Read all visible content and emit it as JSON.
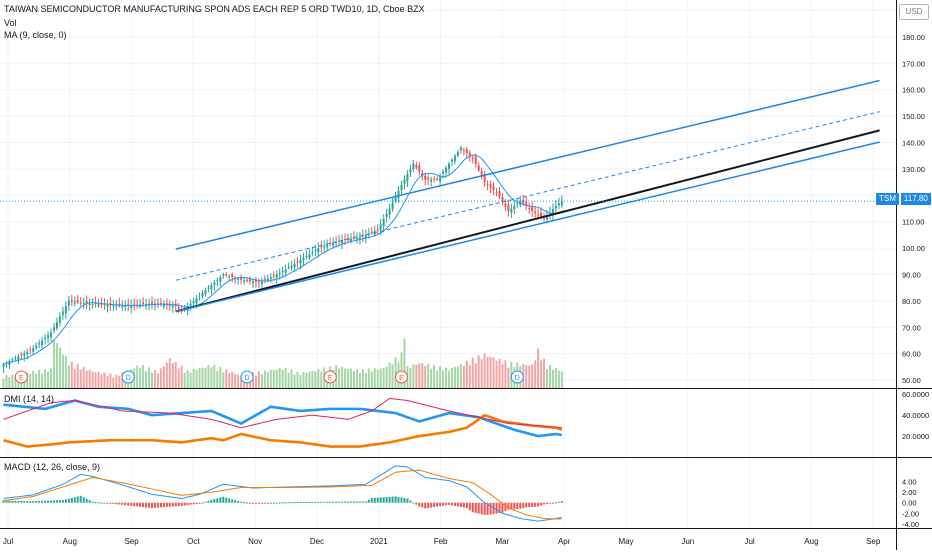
{
  "title": "TAIWAN SEMICONDUCTOR MANUFACTURING SPON ADS EACH REP 5 ORD TWD10, 1D, Cboe BZX",
  "vol_label": "Vol",
  "ma_label": "MA (9, close, 0)",
  "currency": "USD",
  "symbol_tag": "TSM",
  "last_price": "117.80",
  "colors": {
    "up": "#26a69a",
    "down": "#ef5350",
    "blue": "#2196f3",
    "orange": "#f57c00",
    "pink": "#e91e63",
    "black": "#131722"
  },
  "chart_data": [
    {
      "type": "candlestick",
      "title": "TAIWAN SEMICONDUCTOR MANUFACTURING SPON ADS EACH REP 5 ORD TWD10, 1D, Cboe BZX",
      "x_labels": [
        "Jul",
        "Aug",
        "Sep",
        "Oct",
        "Nov",
        "Dec",
        "2021",
        "Feb",
        "Mar",
        "Apr",
        "May",
        "Jun",
        "Jul",
        "Aug",
        "Sep"
      ],
      "y_ticks": [
        "190.00",
        "180.00",
        "170.00",
        "160.00",
        "150.00",
        "140.00",
        "130.00",
        "120.00",
        "110.00",
        "100.00",
        "90.00",
        "80.00",
        "70.00",
        "60.00",
        "50.00"
      ],
      "ylim": [
        47,
        194
      ],
      "close_anchors": [
        [
          0,
          56
        ],
        [
          10,
          62
        ],
        [
          16,
          68
        ],
        [
          22,
          80
        ],
        [
          28,
          79
        ],
        [
          40,
          78
        ],
        [
          50,
          79
        ],
        [
          58,
          78
        ],
        [
          60,
          76
        ],
        [
          64,
          80
        ],
        [
          68,
          84
        ],
        [
          74,
          90
        ],
        [
          80,
          88
        ],
        [
          86,
          87
        ],
        [
          92,
          90
        ],
        [
          98,
          94
        ],
        [
          106,
          100
        ],
        [
          114,
          103
        ],
        [
          120,
          104
        ],
        [
          126,
          107
        ],
        [
          130,
          115
        ],
        [
          134,
          124
        ],
        [
          138,
          132
        ],
        [
          142,
          126
        ],
        [
          146,
          126
        ],
        [
          150,
          132
        ],
        [
          154,
          138
        ],
        [
          158,
          134
        ],
        [
          162,
          125
        ],
        [
          166,
          121
        ],
        [
          170,
          114
        ],
        [
          174,
          118
        ],
        [
          178,
          114
        ],
        [
          182,
          111
        ],
        [
          186,
          116
        ],
        [
          188,
          117.8
        ]
      ],
      "ma_period": 9,
      "volume_ylim": [
        0,
        180
      ],
      "volume_profile": [
        [
          0,
          28
        ],
        [
          16,
          45
        ],
        [
          17,
          120
        ],
        [
          22,
          62
        ],
        [
          30,
          40
        ],
        [
          38,
          30
        ],
        [
          46,
          55
        ],
        [
          52,
          38
        ],
        [
          56,
          70
        ],
        [
          62,
          40
        ],
        [
          70,
          55
        ],
        [
          80,
          30
        ],
        [
          94,
          48
        ],
        [
          100,
          35
        ],
        [
          112,
          52
        ],
        [
          120,
          42
        ],
        [
          128,
          48
        ],
        [
          134,
          80
        ],
        [
          135,
          140
        ],
        [
          136,
          50
        ],
        [
          140,
          60
        ],
        [
          150,
          45
        ],
        [
          162,
          80
        ],
        [
          170,
          60
        ],
        [
          178,
          55
        ],
        [
          180,
          90
        ],
        [
          183,
          55
        ],
        [
          188,
          40
        ]
      ],
      "event_markers": [
        {
          "bar": 6,
          "label": "E"
        },
        {
          "bar": 42,
          "label": "D"
        },
        {
          "bar": 82,
          "label": "D"
        },
        {
          "bar": 110,
          "label": "E"
        },
        {
          "bar": 134,
          "label": "E"
        },
        {
          "bar": 173,
          "label": "D"
        }
      ],
      "trend_lines": [
        {
          "name": "channel-upper",
          "style": "solid",
          "from": [
            58,
            99.6
          ],
          "to": [
            295,
            163.5
          ]
        },
        {
          "name": "channel-mid",
          "style": "dashed",
          "from": [
            58,
            87.8
          ],
          "to": [
            295,
            151.7
          ]
        },
        {
          "name": "support-black",
          "style": "solid-black",
          "from": [
            58,
            76
          ],
          "to": [
            295,
            144.6
          ]
        },
        {
          "name": "channel-lower",
          "style": "solid",
          "from": [
            58,
            76
          ],
          "to": [
            295,
            140.2
          ]
        }
      ]
    },
    {
      "type": "line",
      "title": "DMI (14, 14)",
      "y_ticks": [
        "60.0000",
        "40.0000",
        "20.0000"
      ],
      "ylim": [
        0,
        65
      ],
      "series": [
        {
          "color": "#2196f3",
          "values_anchor": [
            [
              0,
              50
            ],
            [
              14,
              46
            ],
            [
              24,
              54
            ],
            [
              32,
              48
            ],
            [
              42,
              46
            ],
            [
              50,
              40
            ],
            [
              60,
              42
            ],
            [
              70,
              44
            ],
            [
              80,
              32
            ],
            [
              90,
              48
            ],
            [
              100,
              44
            ],
            [
              110,
              46
            ],
            [
              120,
              46
            ],
            [
              132,
              42
            ],
            [
              140,
              34
            ],
            [
              150,
              42
            ],
            [
              160,
              38
            ],
            [
              166,
              32
            ],
            [
              172,
              26
            ],
            [
              180,
              20
            ],
            [
              186,
              22
            ],
            [
              188,
              21
            ]
          ]
        },
        {
          "color": "#f57c00",
          "values_anchor": [
            [
              0,
              16
            ],
            [
              8,
              10
            ],
            [
              16,
              12
            ],
            [
              22,
              14
            ],
            [
              36,
              16
            ],
            [
              50,
              16
            ],
            [
              60,
              14
            ],
            [
              70,
              18
            ],
            [
              74,
              16
            ],
            [
              80,
              22
            ],
            [
              90,
              16
            ],
            [
              100,
              14
            ],
            [
              110,
              10
            ],
            [
              120,
              10
            ],
            [
              130,
              14
            ],
            [
              140,
              20
            ],
            [
              150,
              24
            ],
            [
              156,
              28
            ],
            [
              162,
              40
            ],
            [
              168,
              34
            ],
            [
              178,
              30
            ],
            [
              186,
              28
            ],
            [
              188,
              26
            ]
          ]
        },
        {
          "color": "#e91e63",
          "values_anchor": [
            [
              0,
              36
            ],
            [
              16,
              52
            ],
            [
              24,
              54
            ],
            [
              40,
              44
            ],
            [
              56,
              42
            ],
            [
              70,
              36
            ],
            [
              80,
              28
            ],
            [
              92,
              36
            ],
            [
              104,
              40
            ],
            [
              116,
              36
            ],
            [
              124,
              44
            ],
            [
              130,
              56
            ],
            [
              136,
              54
            ],
            [
              150,
              44
            ],
            [
              160,
              38
            ],
            [
              170,
              32
            ],
            [
              180,
              30
            ],
            [
              188,
              28
            ]
          ]
        }
      ]
    },
    {
      "type": "line",
      "title": "MACD (12, 26, close, 9)",
      "y_ticks": [
        "4.00",
        "2.00",
        "0.00",
        "-2.00",
        "-4.00"
      ],
      "ylim": [
        -4.8,
        8.5
      ],
      "series": [
        {
          "color": "#2196f3",
          "values_anchor": [
            [
              0,
              0.8
            ],
            [
              10,
              1.5
            ],
            [
              20,
              3.5
            ],
            [
              26,
              5.4
            ],
            [
              30,
              5.0
            ],
            [
              40,
              3.4
            ],
            [
              50,
              1.6
            ],
            [
              60,
              0.8
            ],
            [
              66,
              1.6
            ],
            [
              74,
              3.5
            ],
            [
              84,
              2.8
            ],
            [
              96,
              3.0
            ],
            [
              110,
              3.2
            ],
            [
              122,
              3.5
            ],
            [
              128,
              5.6
            ],
            [
              132,
              7.0
            ],
            [
              136,
              6.8
            ],
            [
              142,
              4.8
            ],
            [
              150,
              4.2
            ],
            [
              156,
              3.0
            ],
            [
              162,
              0.0
            ],
            [
              168,
              -2.0
            ],
            [
              174,
              -3.0
            ],
            [
              180,
              -3.5
            ],
            [
              186,
              -3.0
            ],
            [
              188,
              -2.8
            ]
          ]
        },
        {
          "color": "#f57c00",
          "values_anchor": [
            [
              0,
              0.4
            ],
            [
              10,
              1.2
            ],
            [
              20,
              3.0
            ],
            [
              30,
              4.8
            ],
            [
              40,
              3.8
            ],
            [
              50,
              2.6
            ],
            [
              60,
              1.4
            ],
            [
              70,
              2.0
            ],
            [
              80,
              2.9
            ],
            [
              96,
              2.9
            ],
            [
              110,
              3.0
            ],
            [
              124,
              3.3
            ],
            [
              132,
              5.8
            ],
            [
              140,
              6.2
            ],
            [
              150,
              4.6
            ],
            [
              158,
              3.8
            ],
            [
              164,
              1.6
            ],
            [
              170,
              -1.0
            ],
            [
              176,
              -2.3
            ],
            [
              182,
              -3.0
            ],
            [
              188,
              -3.1
            ]
          ]
        }
      ]
    }
  ]
}
